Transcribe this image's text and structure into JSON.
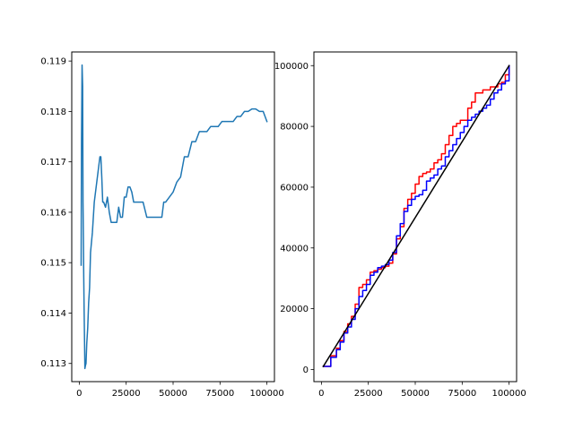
{
  "chart_data": [
    {
      "type": "line",
      "title": "",
      "xlabel": "",
      "ylabel": "",
      "xlim": [
        -4000,
        104000
      ],
      "ylim": [
        0.11264,
        0.11918
      ],
      "xticks": [
        0,
        25000,
        50000,
        75000,
        100000
      ],
      "yticks": [
        0.113,
        0.114,
        0.115,
        0.116,
        0.117,
        0.118,
        0.119
      ],
      "xtick_labels": [
        "0",
        "25000",
        "50000",
        "75000",
        "100000"
      ],
      "ytick_labels": [
        "0.113",
        "0.114",
        "0.115",
        "0.116",
        "0.117",
        "0.118",
        "0.119"
      ],
      "grid": false,
      "series": [
        {
          "color": "#1f77b4",
          "x": [
            1000,
            1200,
            1500,
            1800,
            2000,
            2200,
            2400,
            2600,
            2800,
            3000,
            3300,
            3600,
            4000,
            4500,
            5000,
            5500,
            6000,
            7000,
            8000,
            9000,
            10000,
            11000,
            11500,
            12000,
            12500,
            13000,
            14000,
            15000,
            16000,
            17000,
            18000,
            19000,
            20000,
            21000,
            22000,
            23000,
            24000,
            25000,
            26000,
            27000,
            28000,
            29000,
            30000,
            31000,
            32000,
            34000,
            36000,
            38000,
            40000,
            42000,
            44000,
            45000,
            46000,
            48000,
            50000,
            52000,
            54000,
            56000,
            58000,
            60000,
            62000,
            64000,
            66000,
            68000,
            70000,
            72000,
            74000,
            76000,
            78000,
            80000,
            82000,
            84000,
            86000,
            88000,
            90000,
            92000,
            94000,
            96000,
            98000,
            100000
          ],
          "y": [
            0.11495,
            0.1174,
            0.11892,
            0.1185,
            0.1162,
            0.1155,
            0.1147,
            0.11404,
            0.11349,
            0.1129,
            0.11296,
            0.113,
            0.1134,
            0.1137,
            0.1142,
            0.1145,
            0.1152,
            0.1156,
            0.1162,
            0.1165,
            0.1168,
            0.1171,
            0.1171,
            0.1167,
            0.1162,
            0.1162,
            0.1161,
            0.1163,
            0.116,
            0.1158,
            0.1158,
            0.1158,
            0.1158,
            0.1161,
            0.1159,
            0.1159,
            0.1163,
            0.1163,
            0.1165,
            0.1165,
            0.1164,
            0.1162,
            0.1162,
            0.1162,
            0.1162,
            0.1162,
            0.1159,
            0.1159,
            0.1159,
            0.1159,
            0.1159,
            0.1162,
            0.1162,
            0.1163,
            0.1164,
            0.1166,
            0.1167,
            0.1171,
            0.1171,
            0.1174,
            0.1174,
            0.1176,
            0.1176,
            0.1176,
            0.1177,
            0.1177,
            0.1177,
            0.1178,
            0.1178,
            0.1178,
            0.1178,
            0.1179,
            0.1179,
            0.118,
            0.118,
            0.11805,
            0.11805,
            0.118,
            0.118,
            0.1178
          ]
        }
      ]
    },
    {
      "type": "line",
      "title": "",
      "xlabel": "",
      "ylabel": "",
      "xlim": [
        -4000,
        104000
      ],
      "ylim": [
        -4000,
        104500
      ],
      "xticks": [
        0,
        25000,
        50000,
        75000,
        100000
      ],
      "yticks": [
        0,
        20000,
        40000,
        60000,
        80000,
        100000
      ],
      "xtick_labels": [
        "0",
        "25000",
        "50000",
        "75000",
        "100000"
      ],
      "ytick_labels": [
        "0",
        "20000",
        "40000",
        "60000",
        "80000",
        "100000"
      ],
      "grid": false,
      "series": [
        {
          "color": "#ff0000",
          "step": true,
          "x": [
            1000,
            5000,
            8000,
            10000,
            12000,
            14000,
            16000,
            18000,
            20000,
            22000,
            24000,
            26000,
            28000,
            30000,
            32000,
            34000,
            36000,
            38000,
            40000,
            42000,
            44000,
            46000,
            48000,
            50000,
            52000,
            54000,
            56000,
            58000,
            60000,
            62000,
            64000,
            66000,
            68000,
            70000,
            72000,
            74000,
            76000,
            78000,
            80000,
            82000,
            84000,
            86000,
            88000,
            90000,
            92000,
            94000,
            96000,
            98000,
            100000
          ],
          "y": [
            1000,
            4500,
            7000,
            9500,
            12500,
            15000,
            17500,
            21500,
            27000,
            28000,
            29500,
            32000,
            32500,
            33000,
            33500,
            34000,
            35000,
            38000,
            43000,
            47000,
            53000,
            56000,
            58000,
            61000,
            63500,
            64500,
            65000,
            66000,
            68000,
            69000,
            71000,
            74000,
            77000,
            80000,
            81000,
            82000,
            82000,
            86000,
            88000,
            91000,
            91000,
            92000,
            92000,
            93000,
            93000,
            94000,
            94500,
            97000,
            100000
          ]
        },
        {
          "color": "#0000ff",
          "step": true,
          "x": [
            1000,
            5000,
            8000,
            10000,
            12000,
            14000,
            16000,
            18000,
            20000,
            22000,
            24000,
            26000,
            28000,
            30000,
            32000,
            34000,
            36000,
            38000,
            40000,
            42000,
            44000,
            46000,
            48000,
            50000,
            52000,
            54000,
            56000,
            58000,
            60000,
            62000,
            64000,
            66000,
            68000,
            70000,
            72000,
            74000,
            76000,
            78000,
            80000,
            82000,
            84000,
            86000,
            88000,
            90000,
            92000,
            94000,
            96000,
            98000,
            100000
          ],
          "y": [
            1000,
            4000,
            6500,
            9000,
            12000,
            14000,
            16500,
            20000,
            24000,
            26000,
            28000,
            31000,
            32000,
            33500,
            34000,
            34500,
            36000,
            38500,
            44000,
            48000,
            52000,
            54000,
            56000,
            57000,
            57500,
            59000,
            62000,
            63000,
            64000,
            66000,
            67000,
            70000,
            72000,
            74000,
            76000,
            78000,
            80000,
            82000,
            83000,
            84000,
            85000,
            86000,
            87000,
            89000,
            91000,
            92000,
            94000,
            95000,
            100000
          ]
        },
        {
          "color": "#000000",
          "step": false,
          "x": [
            1000,
            100000
          ],
          "y": [
            1000,
            100000
          ]
        }
      ]
    }
  ]
}
